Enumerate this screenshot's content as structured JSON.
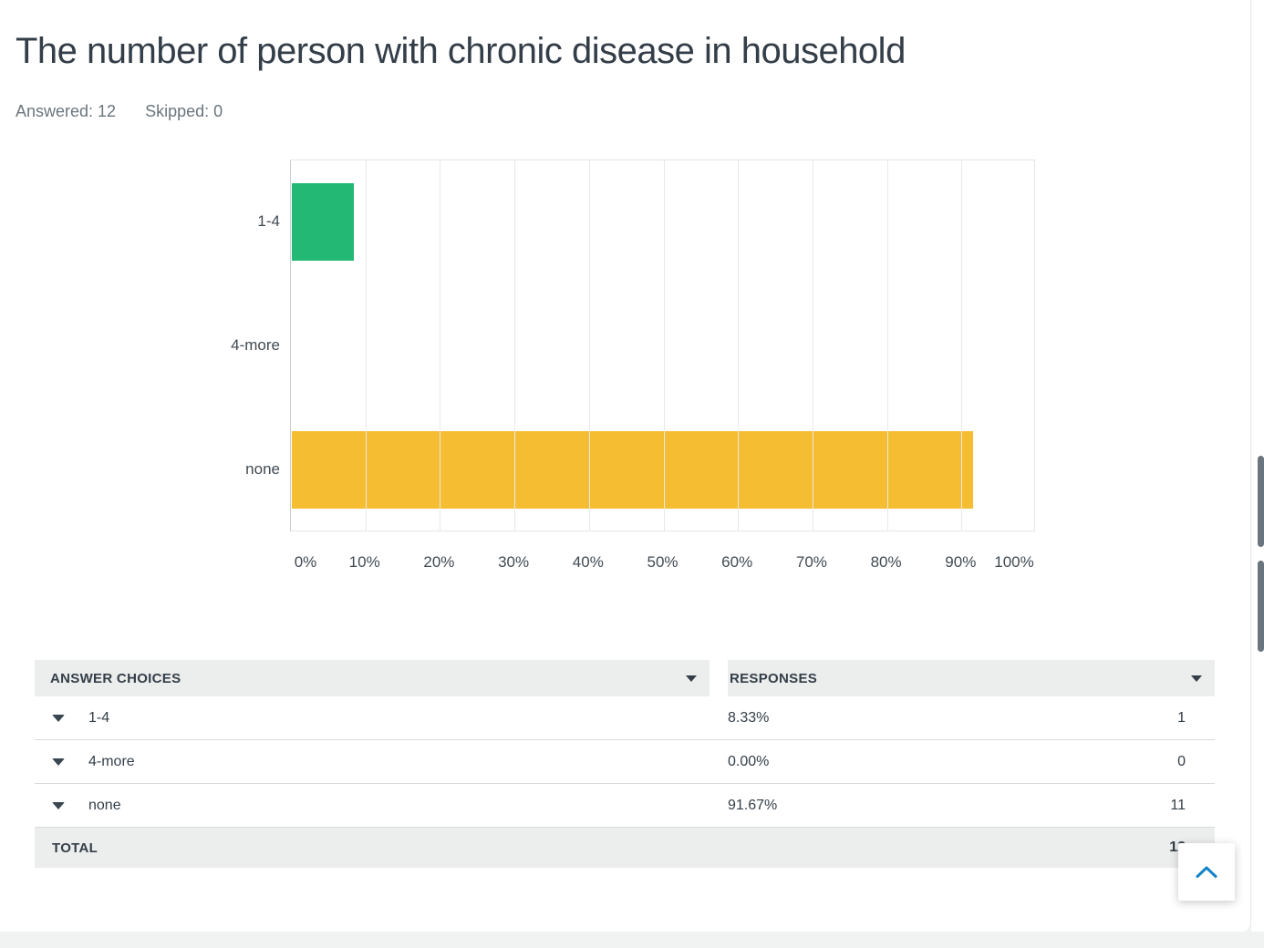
{
  "header": {
    "title": "The number of person with chronic disease in household",
    "answered": "Answered: 12",
    "skipped": "Skipped: 0"
  },
  "chart_data": {
    "type": "bar",
    "orientation": "horizontal",
    "title": "The number of person with chronic disease in household",
    "categories": [
      "1-4",
      "4-more",
      "none"
    ],
    "values": [
      8.33,
      0,
      91.67
    ],
    "bar_colors": [
      "#23B873",
      null,
      "#F5BD31"
    ],
    "x_ticks": [
      "0%",
      "10%",
      "20%",
      "30%",
      "40%",
      "50%",
      "60%",
      "70%",
      "80%",
      "90%",
      "100%"
    ],
    "xlim": [
      0,
      100
    ],
    "grid": true,
    "xlabel": "",
    "ylabel": ""
  },
  "table": {
    "columns": [
      {
        "label": "ANSWER CHOICES"
      },
      {
        "label": "RESPONSES"
      }
    ],
    "rows": [
      {
        "choice": "1-4",
        "percent": "8.33%",
        "count": "1"
      },
      {
        "choice": "4-more",
        "percent": "0.00%",
        "count": "0"
      },
      {
        "choice": "none",
        "percent": "91.67%",
        "count": "11"
      }
    ],
    "total": {
      "label": "TOTAL",
      "value": "12"
    }
  },
  "icons": {
    "sort_arrow": "triangle-down",
    "row_expand": "triangle-down",
    "scroll_top": "chevron-up"
  },
  "colors": {
    "bar_green": "#23B873",
    "bar_yellow": "#F5BD31",
    "chevron_blue": "#1484C6",
    "header_bg": "#ECEDED",
    "text_dark": "#333E48",
    "text_gray": "#6A757D",
    "scrollbar_thumb": "#6B757D"
  }
}
